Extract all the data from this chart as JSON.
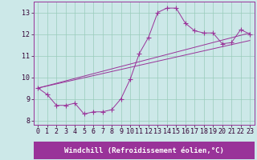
{
  "xlabel": "Windchill (Refroidissement éolien,°C)",
  "background_color": "#cce8e8",
  "grid_color": "#99ccbb",
  "line_color": "#993399",
  "xlim": [
    -0.5,
    23.5
  ],
  "ylim": [
    7.8,
    13.5
  ],
  "xticks": [
    0,
    1,
    2,
    3,
    4,
    5,
    6,
    7,
    8,
    9,
    10,
    11,
    12,
    13,
    14,
    15,
    16,
    17,
    18,
    19,
    20,
    21,
    22,
    23
  ],
  "yticks": [
    8,
    9,
    10,
    11,
    12,
    13
  ],
  "line1_x": [
    0,
    1,
    2,
    3,
    4,
    5,
    6,
    7,
    8,
    9,
    10,
    11,
    12,
    13,
    14,
    15,
    16,
    17,
    18,
    19,
    20,
    21,
    22,
    23
  ],
  "line1_y": [
    9.5,
    9.2,
    8.7,
    8.7,
    8.8,
    8.3,
    8.4,
    8.4,
    8.5,
    9.0,
    9.9,
    11.1,
    11.85,
    13.0,
    13.2,
    13.2,
    12.5,
    12.15,
    12.05,
    12.05,
    11.55,
    11.6,
    12.2,
    12.0
  ],
  "line2_x": [
    0,
    23
  ],
  "line2_y": [
    9.5,
    11.7
  ],
  "line3_x": [
    0,
    23
  ],
  "line3_y": [
    9.5,
    12.05
  ],
  "xlabel_fontsize": 6.5,
  "tick_fontsize": 6,
  "marker_size": 2.5,
  "xlabel_bar_color": "#993399",
  "xlabel_text_color": "#ffffff",
  "axis_color": "#993399",
  "tick_color": "#330033"
}
